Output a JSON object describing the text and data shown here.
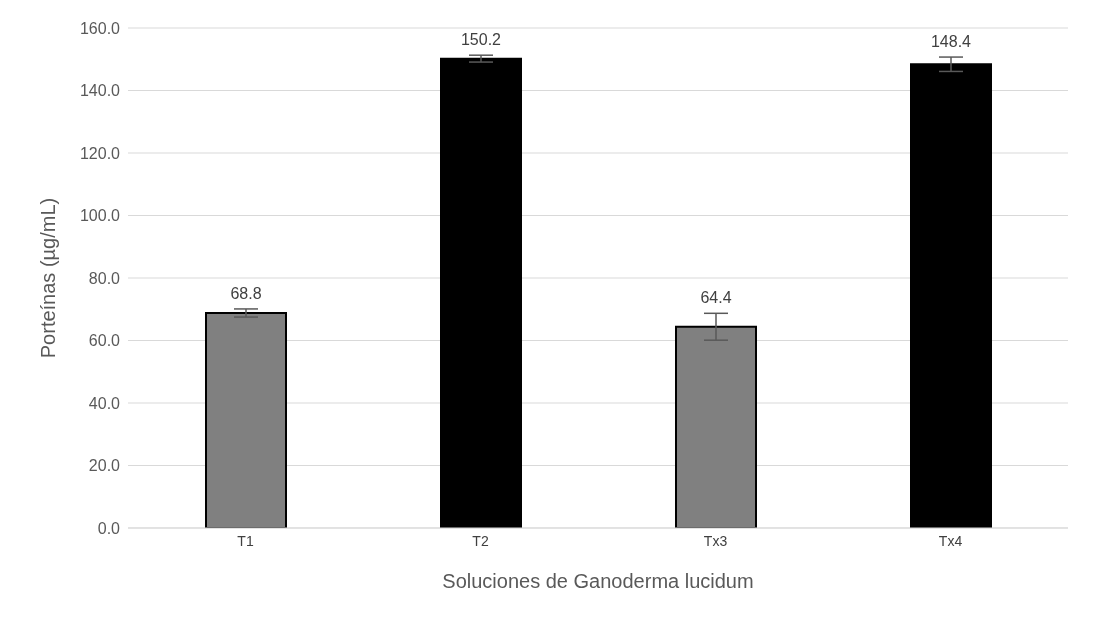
{
  "chart_data": {
    "type": "bar",
    "xlabel": "Soluciones de Ganoderma lucidum",
    "ylabel": "Porteínas (µg/mL)",
    "categories": [
      "T1",
      "T2",
      "Tx3",
      "Tx4"
    ],
    "values": [
      68.8,
      150.2,
      64.4,
      148.4
    ],
    "errors": [
      1.3,
      1.1,
      4.3,
      2.3
    ],
    "colors": [
      "#808080",
      "#000000",
      "#808080",
      "#000000"
    ],
    "ylim": [
      0,
      160
    ],
    "yticks": [
      {
        "value": 0,
        "label": "0.0"
      },
      {
        "value": 20,
        "label": "20.0"
      },
      {
        "value": 40,
        "label": "40.0"
      },
      {
        "value": 60,
        "label": "60.0"
      },
      {
        "value": 80,
        "label": "80.0"
      },
      {
        "value": 100,
        "label": "100.0"
      },
      {
        "value": 120,
        "label": "120.0"
      },
      {
        "value": 140,
        "label": "140.0"
      },
      {
        "value": 160,
        "label": "160.0"
      }
    ],
    "grid": "y",
    "data_labels": true
  }
}
